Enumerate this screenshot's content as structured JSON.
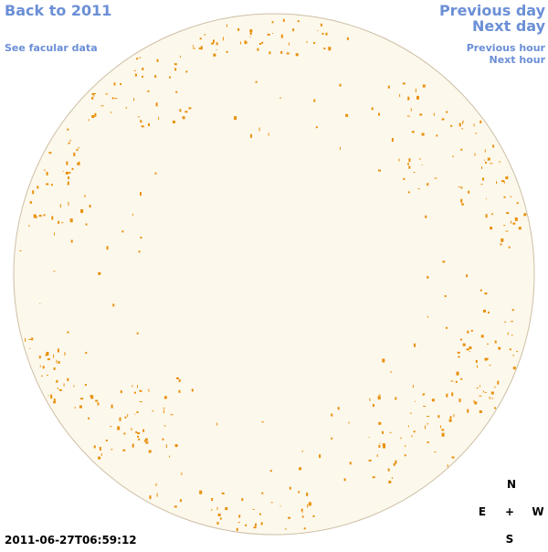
{
  "links": {
    "back": "Back to 2011",
    "facular": "See facular data",
    "prev_day": "Previous day",
    "next_day": "Next day",
    "prev_hour": "Previous hour",
    "next_hour": "Next hour"
  },
  "timestamp": "2011-06-27T06:59:12",
  "compass": {
    "north": "N",
    "east": "E",
    "center": "+",
    "west": "W",
    "south": "S"
  }
}
